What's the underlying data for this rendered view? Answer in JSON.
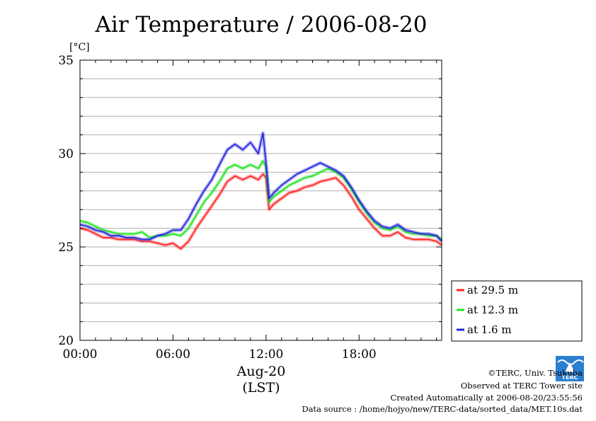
{
  "chart_data": {
    "type": "line",
    "title": "Air Temperature / 2006-08-20",
    "ylabel": "[°C]",
    "xlabel": "Aug-20",
    "xlabel2": "(LST)",
    "ylim": [
      20,
      35
    ],
    "xlim": [
      0,
      23.33
    ],
    "grid": true,
    "x_ticks": [
      {
        "value": 0,
        "label": "00:00"
      },
      {
        "value": 6,
        "label": "06:00"
      },
      {
        "value": 12,
        "label": "12:00"
      },
      {
        "value": 18,
        "label": "18:00"
      }
    ],
    "y_ticks": [
      {
        "value": 20,
        "label": "20"
      },
      {
        "value": 25,
        "label": "25"
      },
      {
        "value": 30,
        "label": "30"
      },
      {
        "value": 35,
        "label": "35"
      }
    ],
    "legend_position": "right-bottom",
    "series": [
      {
        "name": "at 29.5 m",
        "color": "#ff2020",
        "x": [
          0,
          0.5,
          1,
          1.5,
          2,
          2.5,
          3,
          3.5,
          4,
          4.5,
          5,
          5.5,
          6,
          6.5,
          7,
          7.5,
          8,
          8.5,
          9,
          9.5,
          10,
          10.5,
          11,
          11.5,
          11.8,
          12,
          12.2,
          12.5,
          13,
          13.5,
          14,
          14.5,
          15,
          15.5,
          16,
          16.5,
          17,
          17.5,
          18,
          18.5,
          19,
          19.5,
          20,
          20.5,
          21,
          21.5,
          22,
          22.5,
          23,
          23.33
        ],
        "values": [
          26.0,
          25.9,
          25.7,
          25.5,
          25.5,
          25.4,
          25.4,
          25.4,
          25.3,
          25.3,
          25.2,
          25.1,
          25.2,
          24.9,
          25.3,
          26.0,
          26.6,
          27.2,
          27.8,
          28.5,
          28.8,
          28.6,
          28.8,
          28.6,
          28.9,
          28.7,
          27.0,
          27.3,
          27.6,
          27.9,
          28.0,
          28.2,
          28.3,
          28.5,
          28.6,
          28.7,
          28.3,
          27.7,
          27.0,
          26.5,
          26.0,
          25.6,
          25.6,
          25.8,
          25.5,
          25.4,
          25.4,
          25.4,
          25.3,
          25.1
        ]
      },
      {
        "name": "at 12.3 m",
        "color": "#20e020",
        "x": [
          0,
          0.5,
          1,
          1.5,
          2,
          2.5,
          3,
          3.5,
          4,
          4.5,
          5,
          5.5,
          6,
          6.5,
          7,
          7.5,
          8,
          8.5,
          9,
          9.5,
          10,
          10.5,
          11,
          11.5,
          11.8,
          12,
          12.2,
          12.5,
          13,
          13.5,
          14,
          14.5,
          15,
          15.5,
          16,
          16.5,
          17,
          17.5,
          18,
          18.5,
          19,
          19.5,
          20,
          20.5,
          21,
          21.5,
          22,
          22.5,
          23,
          23.33
        ],
        "values": [
          26.4,
          26.3,
          26.1,
          25.9,
          25.8,
          25.7,
          25.7,
          25.7,
          25.8,
          25.5,
          25.6,
          25.6,
          25.7,
          25.6,
          26.0,
          26.7,
          27.4,
          27.9,
          28.5,
          29.2,
          29.4,
          29.2,
          29.4,
          29.2,
          29.6,
          29.3,
          27.4,
          27.7,
          28.0,
          28.3,
          28.5,
          28.7,
          28.8,
          29.0,
          29.2,
          29.0,
          28.7,
          28.1,
          27.4,
          26.8,
          26.3,
          26.0,
          25.9,
          26.1,
          25.8,
          25.7,
          25.7,
          25.6,
          25.6,
          25.4
        ]
      },
      {
        "name": "at 1.6 m",
        "color": "#2020e0",
        "x": [
          0,
          0.5,
          1,
          1.5,
          2,
          2.5,
          3,
          3.5,
          4,
          4.5,
          5,
          5.5,
          6,
          6.5,
          7,
          7.5,
          8,
          8.5,
          9,
          9.5,
          10,
          10.5,
          11,
          11.5,
          11.8,
          12,
          12.2,
          12.5,
          13,
          13.5,
          14,
          14.5,
          15,
          15.5,
          16,
          16.5,
          17,
          17.5,
          18,
          18.5,
          19,
          19.5,
          20,
          20.5,
          21,
          21.5,
          22,
          22.5,
          23,
          23.33
        ],
        "values": [
          26.2,
          26.1,
          25.9,
          25.8,
          25.6,
          25.6,
          25.5,
          25.5,
          25.4,
          25.4,
          25.6,
          25.7,
          25.9,
          25.9,
          26.5,
          27.3,
          28.0,
          28.6,
          29.4,
          30.2,
          30.5,
          30.2,
          30.6,
          30.0,
          31.1,
          29.5,
          27.6,
          27.9,
          28.3,
          28.6,
          28.9,
          29.1,
          29.3,
          29.5,
          29.3,
          29.1,
          28.8,
          28.2,
          27.5,
          26.9,
          26.4,
          26.1,
          26.0,
          26.2,
          25.9,
          25.8,
          25.7,
          25.7,
          25.6,
          25.3
        ]
      }
    ]
  },
  "footer": {
    "copyright": "©TERC, Univ. Tsukuba",
    "site": "Observed at TERC Tower site",
    "created": "Created Automatically at 2006-08-20/23:55:56",
    "source": "Data source : /home/hojyo/new/TERC-data/sorted_data/MET.10s.dat",
    "logo_text": "TERC"
  }
}
